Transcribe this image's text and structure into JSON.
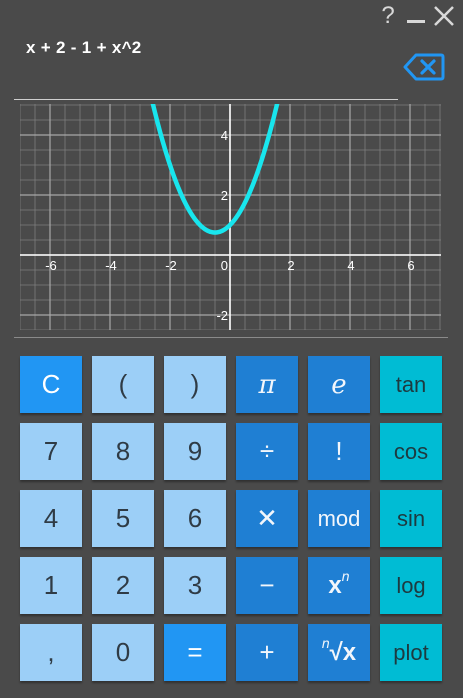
{
  "window": {
    "help_label": "?",
    "minimize_label": "—",
    "close_label": "✕"
  },
  "display": {
    "expression": "x + 2 - 1 + x^2"
  },
  "graph": {
    "x_ticks": [
      "-6",
      "-4",
      "-2",
      "0",
      "2",
      "4",
      "6"
    ],
    "y_ticks": [
      "4",
      "2",
      "-2"
    ],
    "curve_color": "#18e6ee"
  },
  "chart_data": {
    "type": "line",
    "xlim": [
      -7,
      7
    ],
    "ylim": [
      -2.5,
      5
    ],
    "series": [
      {
        "function": "x^2 + x + 1"
      }
    ],
    "grid": true
  },
  "keys": {
    "clear": "C",
    "lparen": "(",
    "rparen": ")",
    "pi": "π",
    "e": "e",
    "tan": "tan",
    "seven": "7",
    "eight": "8",
    "nine": "9",
    "divide": "÷",
    "factorial": "!",
    "cos": "cos",
    "four": "4",
    "five": "5",
    "six": "6",
    "multiply": "✕",
    "mod": "mod",
    "sin": "sin",
    "one": "1",
    "two": "2",
    "three": "3",
    "minus": "−",
    "power_base": "x",
    "power_exp": "n",
    "log": "log",
    "comma": ",",
    "zero": "0",
    "equals": "=",
    "plus": "+",
    "root_index": "n",
    "root_body": "√x",
    "plot": "plot"
  },
  "colors": {
    "background": "#4a4a4a",
    "key_light": "#9ccff7",
    "key_blue": "#1f7fd3",
    "key_bright": "#2196f3",
    "key_teal": "#00bcd4",
    "backspace": "#2196f3"
  }
}
